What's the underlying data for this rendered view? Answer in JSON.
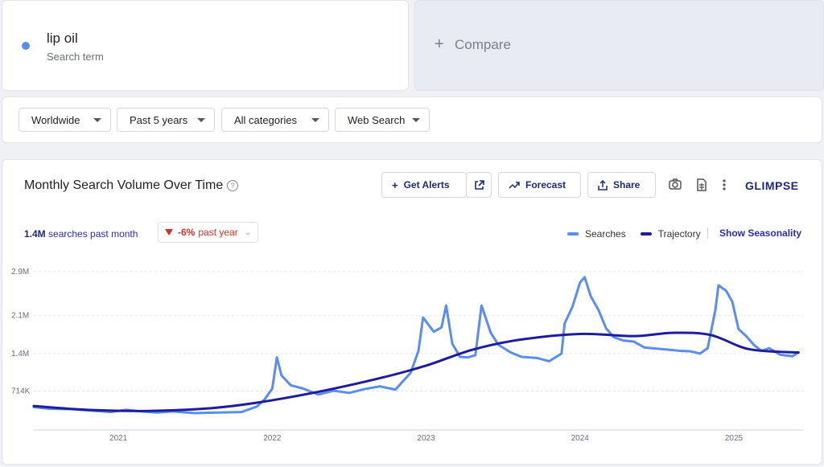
{
  "term": {
    "title": "lip oil",
    "subtitle": "Search term",
    "dot_color": "#5b8def"
  },
  "compare": {
    "label": "Compare"
  },
  "filters": {
    "region": "Worldwide",
    "range": "Past 5 years",
    "category": "All categories",
    "source": "Web Search"
  },
  "panel": {
    "title": "Monthly Search Volume Over Time"
  },
  "toolbar": {
    "alerts_label": "Get Alerts",
    "forecast_label": "Forecast",
    "share_label": "Share",
    "logo": "GLIMPSE"
  },
  "stats": {
    "volume": "1.4M",
    "volume_label": "searches past month",
    "yoy": "-6%",
    "yoy_label": "past year"
  },
  "legend": {
    "searches": "Searches",
    "trajectory": "Trajectory",
    "seasonality": "Show Seasonality"
  },
  "colors": {
    "searches": "#5b8def",
    "trajectory": "#1e1b9e"
  },
  "chart_data": {
    "type": "line",
    "ylim": [
      0,
      2900000
    ],
    "y_ticks": [
      {
        "v": 714000,
        "label": "714K"
      },
      {
        "v": 1400000,
        "label": "1.4M"
      },
      {
        "v": 2100000,
        "label": "2.1M"
      },
      {
        "v": 2900000,
        "label": "2.9M"
      }
    ],
    "xlim": [
      2020.45,
      2025.45
    ],
    "x_ticks": [
      {
        "v": 2021.0,
        "label": "2021"
      },
      {
        "v": 2022.0,
        "label": "2022"
      },
      {
        "v": 2023.0,
        "label": "2023"
      },
      {
        "v": 2024.0,
        "label": "2024"
      },
      {
        "v": 2025.0,
        "label": "2025"
      }
    ],
    "series": [
      {
        "name": "Searches",
        "points": [
          [
            2020.45,
            420000
          ],
          [
            2020.55,
            390000
          ],
          [
            2020.7,
            380000
          ],
          [
            2020.85,
            350000
          ],
          [
            2020.95,
            330000
          ],
          [
            2021.05,
            370000
          ],
          [
            2021.15,
            340000
          ],
          [
            2021.25,
            320000
          ],
          [
            2021.35,
            340000
          ],
          [
            2021.5,
            310000
          ],
          [
            2021.65,
            320000
          ],
          [
            2021.8,
            330000
          ],
          [
            2021.9,
            430000
          ],
          [
            2021.95,
            560000
          ],
          [
            2022.0,
            760000
          ],
          [
            2022.03,
            1330000
          ],
          [
            2022.06,
            1000000
          ],
          [
            2022.12,
            820000
          ],
          [
            2022.2,
            760000
          ],
          [
            2022.3,
            650000
          ],
          [
            2022.4,
            720000
          ],
          [
            2022.5,
            680000
          ],
          [
            2022.6,
            750000
          ],
          [
            2022.7,
            800000
          ],
          [
            2022.8,
            740000
          ],
          [
            2022.9,
            1050000
          ],
          [
            2022.95,
            1450000
          ],
          [
            2022.98,
            2060000
          ],
          [
            2023.05,
            1800000
          ],
          [
            2023.1,
            1880000
          ],
          [
            2023.13,
            2280000
          ],
          [
            2023.17,
            1580000
          ],
          [
            2023.22,
            1340000
          ],
          [
            2023.27,
            1330000
          ],
          [
            2023.32,
            1370000
          ],
          [
            2023.36,
            2280000
          ],
          [
            2023.42,
            1780000
          ],
          [
            2023.47,
            1560000
          ],
          [
            2023.55,
            1420000
          ],
          [
            2023.62,
            1340000
          ],
          [
            2023.72,
            1320000
          ],
          [
            2023.8,
            1260000
          ],
          [
            2023.88,
            1400000
          ],
          [
            2023.9,
            1950000
          ],
          [
            2023.95,
            2250000
          ],
          [
            2024.0,
            2700000
          ],
          [
            2024.03,
            2800000
          ],
          [
            2024.07,
            2450000
          ],
          [
            2024.12,
            2200000
          ],
          [
            2024.17,
            1860000
          ],
          [
            2024.22,
            1700000
          ],
          [
            2024.28,
            1640000
          ],
          [
            2024.35,
            1620000
          ],
          [
            2024.42,
            1510000
          ],
          [
            2024.5,
            1490000
          ],
          [
            2024.58,
            1470000
          ],
          [
            2024.65,
            1450000
          ],
          [
            2024.72,
            1440000
          ],
          [
            2024.78,
            1400000
          ],
          [
            2024.83,
            1500000
          ],
          [
            2024.88,
            2200000
          ],
          [
            2024.9,
            2650000
          ],
          [
            2024.95,
            2550000
          ],
          [
            2024.99,
            2350000
          ],
          [
            2025.03,
            1850000
          ],
          [
            2025.08,
            1720000
          ],
          [
            2025.13,
            1560000
          ],
          [
            2025.18,
            1450000
          ],
          [
            2025.23,
            1500000
          ],
          [
            2025.3,
            1380000
          ],
          [
            2025.38,
            1350000
          ],
          [
            2025.42,
            1420000
          ]
        ]
      },
      {
        "name": "Trajectory",
        "points": [
          [
            2020.45,
            440000
          ],
          [
            2020.8,
            370000
          ],
          [
            2021.2,
            350000
          ],
          [
            2021.6,
            400000
          ],
          [
            2021.9,
            500000
          ],
          [
            2022.3,
            700000
          ],
          [
            2022.7,
            950000
          ],
          [
            2023.0,
            1180000
          ],
          [
            2023.3,
            1470000
          ],
          [
            2023.6,
            1650000
          ],
          [
            2024.0,
            1760000
          ],
          [
            2024.35,
            1720000
          ],
          [
            2024.6,
            1780000
          ],
          [
            2024.85,
            1740000
          ],
          [
            2025.1,
            1480000
          ],
          [
            2025.42,
            1420000
          ]
        ]
      }
    ]
  }
}
